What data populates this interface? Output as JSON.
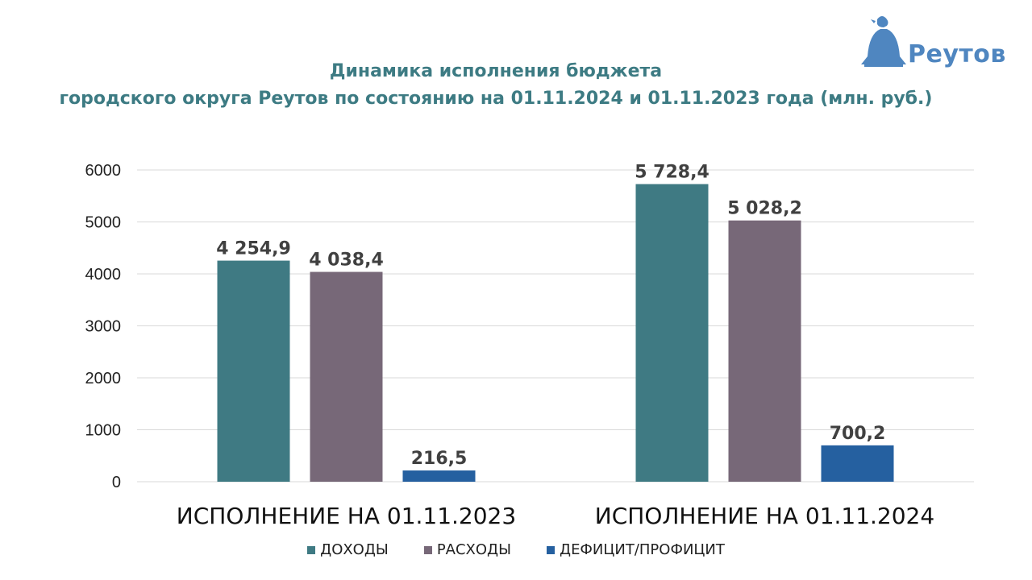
{
  "title_line1": "Динамика исполнения бюджета",
  "title_line2": "городского округа Реутов по состоянию на 01.11.2024 и 01.11.2023 года (млн. руб.)",
  "logo_text": "Реутов",
  "colors": {
    "title": "#3d7b83",
    "income": "#3f7a83",
    "expense": "#776878",
    "deficit": "#2560a0",
    "logo": "#4f86c0"
  },
  "chart_data": {
    "type": "bar",
    "categories": [
      "ИСПОЛНЕНИЕ НА 01.11.2023",
      "ИСПОЛНЕНИЕ НА 01.11.2024"
    ],
    "series": [
      {
        "name": "ДОХОДЫ",
        "values": [
          4254.9,
          5728.4
        ],
        "labels": [
          "4 254,9",
          "5 728,4"
        ]
      },
      {
        "name": "РАСХОДЫ",
        "values": [
          4038.4,
          5028.2
        ],
        "labels": [
          "4 038,4",
          "5 028,2"
        ]
      },
      {
        "name": "ДЕФИЦИТ/ПРОФИЦИТ",
        "values": [
          216.5,
          700.2
        ],
        "labels": [
          "216,5",
          "700,2"
        ]
      }
    ],
    "yticks": [
      "0",
      "1000",
      "2000",
      "3000",
      "4000",
      "5000",
      "6000"
    ],
    "ylim": [
      0,
      6000
    ],
    "grid": true,
    "legend": "bottom"
  }
}
